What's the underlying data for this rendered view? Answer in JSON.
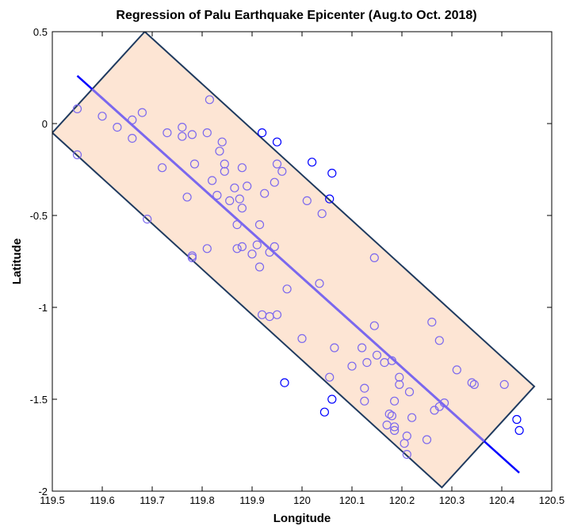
{
  "chart_data": {
    "type": "scatter",
    "title": "Regression of Palu Earthquake Epicenter (Aug.to Oct. 2018)",
    "xlabel": "Longitude",
    "ylabel": "Latitude",
    "xlim": [
      119.5,
      120.5
    ],
    "ylim": [
      -2,
      0.5
    ],
    "xticks": [
      119.5,
      119.6,
      119.7,
      119.8,
      119.9,
      120,
      120.1,
      120.2,
      120.3,
      120.4,
      120.5
    ],
    "xtick_labels": [
      "119.5",
      "119.6",
      "119.7",
      "119.8",
      "119.9",
      "120",
      "120.1",
      "120.2",
      "120.3",
      "120.4",
      "120.5"
    ],
    "yticks": [
      0.5,
      0,
      -0.5,
      -1,
      -1.5,
      -2
    ],
    "ytick_labels": [
      "0.5",
      "0",
      "-0.5",
      "-1",
      "-1.5",
      "-2"
    ],
    "grid": false,
    "colors": {
      "inside_marker": "#7b68ee",
      "outside_marker": "#0000ff",
      "regression_line": "#7b68ee",
      "regression_line_outside": "#0000ff",
      "band_fill": "#fde5d4",
      "band_edge": "#1f3a5f"
    },
    "band_polygon": [
      [
        119.5,
        -0.05
      ],
      [
        119.685,
        0.5
      ],
      [
        120.465,
        -1.43
      ],
      [
        120.28,
        -1.98
      ]
    ],
    "regression_line": {
      "x_start": 119.55,
      "y_start": 0.26,
      "x_end": 120.435,
      "y_end": -1.9
    },
    "points": [
      [
        119.55,
        0.08
      ],
      [
        119.55,
        -0.17
      ],
      [
        119.6,
        0.04
      ],
      [
        119.63,
        -0.02
      ],
      [
        119.66,
        0.02
      ],
      [
        119.66,
        -0.08
      ],
      [
        119.68,
        0.06
      ],
      [
        119.69,
        -0.52
      ],
      [
        119.72,
        -0.24
      ],
      [
        119.73,
        -0.05
      ],
      [
        119.76,
        -0.02
      ],
      [
        119.76,
        -0.07
      ],
      [
        119.77,
        -0.4
      ],
      [
        119.78,
        -0.72
      ],
      [
        119.78,
        -0.73
      ],
      [
        119.78,
        -0.06
      ],
      [
        119.785,
        -0.22
      ],
      [
        119.81,
        -0.05
      ],
      [
        119.81,
        -0.68
      ],
      [
        119.815,
        0.13
      ],
      [
        119.82,
        -0.31
      ],
      [
        119.83,
        -0.39
      ],
      [
        119.835,
        -0.15
      ],
      [
        119.84,
        -0.1
      ],
      [
        119.845,
        -0.22
      ],
      [
        119.845,
        -0.26
      ],
      [
        119.855,
        -0.42
      ],
      [
        119.865,
        -0.35
      ],
      [
        119.87,
        -0.55
      ],
      [
        119.87,
        -0.68
      ],
      [
        119.875,
        -0.41
      ],
      [
        119.88,
        -0.24
      ],
      [
        119.88,
        -0.67
      ],
      [
        119.88,
        -0.46
      ],
      [
        119.89,
        -0.34
      ],
      [
        119.9,
        -0.71
      ],
      [
        119.91,
        -0.66
      ],
      [
        119.915,
        -0.55
      ],
      [
        119.915,
        -0.78
      ],
      [
        119.92,
        -0.05
      ],
      [
        119.92,
        -1.04
      ],
      [
        119.925,
        -0.38
      ],
      [
        119.935,
        -0.7
      ],
      [
        119.935,
        -1.05
      ],
      [
        119.945,
        -0.67
      ],
      [
        119.945,
        -0.32
      ],
      [
        119.95,
        -0.1
      ],
      [
        119.95,
        -1.04
      ],
      [
        119.95,
        -0.22
      ],
      [
        119.96,
        -0.26
      ],
      [
        119.965,
        -1.41
      ],
      [
        119.97,
        -0.9
      ],
      [
        120.0,
        -1.17
      ],
      [
        120.01,
        -0.42
      ],
      [
        120.02,
        -0.21
      ],
      [
        120.035,
        -0.87
      ],
      [
        120.04,
        -0.49
      ],
      [
        120.045,
        -1.57
      ],
      [
        120.055,
        -1.38
      ],
      [
        120.055,
        -0.41
      ],
      [
        120.06,
        -1.5
      ],
      [
        120.06,
        -0.27
      ],
      [
        120.065,
        -1.22
      ],
      [
        120.1,
        -1.32
      ],
      [
        120.12,
        -1.22
      ],
      [
        120.125,
        -1.44
      ],
      [
        120.125,
        -1.51
      ],
      [
        120.13,
        -1.3
      ],
      [
        120.145,
        -0.73
      ],
      [
        120.145,
        -1.1
      ],
      [
        120.15,
        -1.26
      ],
      [
        120.165,
        -1.3
      ],
      [
        120.17,
        -1.64
      ],
      [
        120.175,
        -1.58
      ],
      [
        120.18,
        -1.29
      ],
      [
        120.18,
        -1.59
      ],
      [
        120.185,
        -1.51
      ],
      [
        120.185,
        -1.65
      ],
      [
        120.185,
        -1.67
      ],
      [
        120.195,
        -1.38
      ],
      [
        120.195,
        -1.42
      ],
      [
        120.205,
        -1.74
      ],
      [
        120.21,
        -1.7
      ],
      [
        120.21,
        -1.8
      ],
      [
        120.215,
        -1.46
      ],
      [
        120.22,
        -1.6
      ],
      [
        120.25,
        -1.72
      ],
      [
        120.26,
        -1.08
      ],
      [
        120.265,
        -1.56
      ],
      [
        120.275,
        -1.18
      ],
      [
        120.275,
        -1.54
      ],
      [
        120.285,
        -1.52
      ],
      [
        120.31,
        -1.34
      ],
      [
        120.34,
        -1.41
      ],
      [
        120.345,
        -1.42
      ],
      [
        120.405,
        -1.42
      ],
      [
        120.43,
        -1.61
      ],
      [
        120.435,
        -1.67
      ]
    ]
  }
}
